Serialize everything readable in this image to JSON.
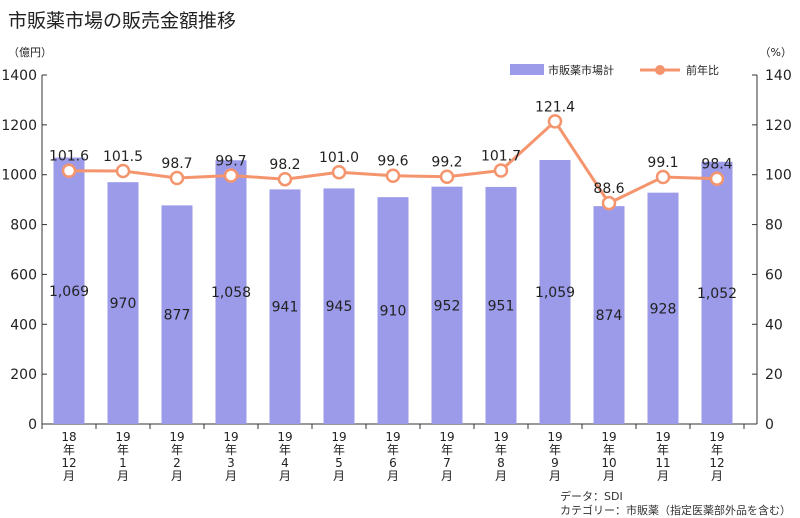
{
  "title": "市販薬市場の販売金額推移",
  "source_line": "データ：SDI",
  "category_line": "カテゴリー：市販薬（指定医薬部外品を含む）",
  "colors": {
    "bar": "#9b9bea",
    "line": "#f4956e",
    "axis": "#333333"
  },
  "chart_data": {
    "type": "bar",
    "title": "市販薬市場の販売金額推移",
    "categories": [
      [
        "18",
        "年",
        "12",
        "月"
      ],
      [
        "19",
        "年",
        "1",
        "月"
      ],
      [
        "19",
        "年",
        "2",
        "月"
      ],
      [
        "19",
        "年",
        "3",
        "月"
      ],
      [
        "19",
        "年",
        "4",
        "月"
      ],
      [
        "19",
        "年",
        "5",
        "月"
      ],
      [
        "19",
        "年",
        "6",
        "月"
      ],
      [
        "19",
        "年",
        "7",
        "月"
      ],
      [
        "19",
        "年",
        "8",
        "月"
      ],
      [
        "19",
        "年",
        "9",
        "月"
      ],
      [
        "19",
        "年",
        "10",
        "月"
      ],
      [
        "19",
        "年",
        "11",
        "月"
      ],
      [
        "19",
        "年",
        "12",
        "月"
      ]
    ],
    "left_axis": {
      "unit_label": "（億円）",
      "ylim": [
        0,
        1400
      ],
      "ticks": [
        0,
        200,
        400,
        600,
        800,
        1000,
        1200,
        1400
      ]
    },
    "right_axis": {
      "unit_label": "（%）",
      "ylim": [
        0,
        140
      ],
      "ticks": [
        0,
        20,
        40,
        60,
        80,
        100,
        120,
        140
      ]
    },
    "series": [
      {
        "name": "市販薬市場計",
        "type": "bar",
        "axis": "left",
        "values": [
          1069,
          970,
          877,
          1058,
          941,
          945,
          910,
          952,
          951,
          1059,
          874,
          928,
          1052
        ],
        "labels": [
          "1,069",
          "970",
          "877",
          "1,058",
          "941",
          "945",
          "910",
          "952",
          "951",
          "1,059",
          "874",
          "928",
          "1,052"
        ]
      },
      {
        "name": "前年比",
        "type": "line",
        "axis": "right",
        "values": [
          101.6,
          101.5,
          98.7,
          99.7,
          98.2,
          101.0,
          99.6,
          99.2,
          101.7,
          121.4,
          88.6,
          99.1,
          98.4
        ],
        "labels": [
          "101.6",
          "101.5",
          "98.7",
          "99.7",
          "98.2",
          "101.0",
          "99.6",
          "99.2",
          "101.7",
          "121.4",
          "88.6",
          "99.1",
          "98.4"
        ]
      }
    ],
    "legend_position": "top-right",
    "grid": false
  }
}
